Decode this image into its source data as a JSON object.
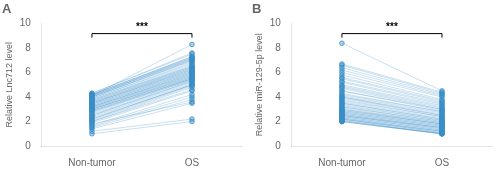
{
  "chart_data": [
    {
      "type": "line",
      "title": "A",
      "ylabel": "Relative Lnc712 level",
      "categories": [
        "Non-tumor",
        "OS"
      ],
      "color": "#3A8EC8",
      "marker": "circle",
      "ylim": [
        0,
        10
      ],
      "yticks": [
        0,
        2,
        4,
        6,
        8,
        10
      ],
      "grid": false,
      "annotations": [
        "***"
      ],
      "series": [
        {
          "values": [
            1.0,
            2.0
          ]
        },
        {
          "values": [
            1.2,
            2.2
          ]
        },
        {
          "values": [
            1.4,
            3.5
          ]
        },
        {
          "values": [
            1.5,
            3.8
          ]
        },
        {
          "values": [
            1.6,
            4.0
          ]
        },
        {
          "values": [
            1.7,
            4.2
          ]
        },
        {
          "values": [
            1.8,
            3.6
          ]
        },
        {
          "values": [
            1.9,
            4.5
          ]
        },
        {
          "values": [
            2.0,
            4.6
          ]
        },
        {
          "values": [
            2.0,
            4.8
          ]
        },
        {
          "values": [
            2.1,
            4.9
          ]
        },
        {
          "values": [
            2.2,
            5.0
          ]
        },
        {
          "values": [
            2.2,
            5.0
          ]
        },
        {
          "values": [
            2.3,
            5.0
          ]
        },
        {
          "values": [
            2.4,
            5.1
          ]
        },
        {
          "values": [
            2.5,
            5.2
          ]
        },
        {
          "values": [
            2.5,
            5.3
          ]
        },
        {
          "values": [
            2.6,
            5.3
          ]
        },
        {
          "values": [
            2.7,
            5.4
          ]
        },
        {
          "values": [
            2.8,
            5.4
          ]
        },
        {
          "values": [
            2.8,
            5.5
          ]
        },
        {
          "values": [
            2.9,
            5.5
          ]
        },
        {
          "values": [
            2.9,
            5.5
          ]
        },
        {
          "values": [
            3.0,
            5.6
          ]
        },
        {
          "values": [
            3.0,
            5.6
          ]
        },
        {
          "values": [
            3.0,
            5.7
          ]
        },
        {
          "values": [
            3.1,
            5.7
          ]
        },
        {
          "values": [
            3.1,
            5.8
          ]
        },
        {
          "values": [
            3.2,
            5.8
          ]
        },
        {
          "values": [
            3.2,
            5.9
          ]
        },
        {
          "values": [
            3.2,
            5.9
          ]
        },
        {
          "values": [
            3.3,
            6.0
          ]
        },
        {
          "values": [
            3.3,
            6.0
          ]
        },
        {
          "values": [
            3.4,
            6.1
          ]
        },
        {
          "values": [
            3.4,
            6.1
          ]
        },
        {
          "values": [
            3.5,
            6.2
          ]
        },
        {
          "values": [
            3.5,
            6.2
          ]
        },
        {
          "values": [
            3.5,
            6.3
          ]
        },
        {
          "values": [
            3.6,
            6.3
          ]
        },
        {
          "values": [
            3.6,
            6.4
          ]
        },
        {
          "values": [
            3.7,
            6.4
          ]
        },
        {
          "values": [
            3.7,
            6.5
          ]
        },
        {
          "values": [
            3.8,
            6.5
          ]
        },
        {
          "values": [
            3.8,
            6.6
          ]
        },
        {
          "values": [
            3.9,
            6.7
          ]
        },
        {
          "values": [
            3.9,
            6.8
          ]
        },
        {
          "values": [
            4.0,
            6.9
          ]
        },
        {
          "values": [
            4.0,
            7.0
          ]
        },
        {
          "values": [
            4.0,
            7.0
          ]
        },
        {
          "values": [
            4.1,
            7.1
          ]
        },
        {
          "values": [
            4.1,
            7.1
          ]
        },
        {
          "values": [
            4.1,
            7.2
          ]
        },
        {
          "values": [
            4.2,
            7.2
          ]
        },
        {
          "values": [
            4.2,
            7.3
          ]
        },
        {
          "values": [
            4.2,
            7.3
          ]
        },
        {
          "values": [
            4.3,
            7.5
          ]
        },
        {
          "values": [
            4.3,
            7.6
          ]
        },
        {
          "values": [
            4.1,
            8.3
          ]
        }
      ]
    },
    {
      "type": "line",
      "title": "B",
      "ylabel": "Relative miR-129-5p level",
      "categories": [
        "Non-tumor",
        "OS"
      ],
      "color": "#3A8EC8",
      "marker": "circle",
      "ylim": [
        0,
        10
      ],
      "yticks": [
        0,
        2,
        4,
        6,
        8,
        10
      ],
      "grid": false,
      "annotations": [
        "***"
      ],
      "series": [
        {
          "values": [
            8.4,
            4.5
          ]
        },
        {
          "values": [
            6.7,
            4.4
          ]
        },
        {
          "values": [
            6.6,
            4.3
          ]
        },
        {
          "values": [
            6.4,
            4.2
          ]
        },
        {
          "values": [
            6.2,
            4.1
          ]
        },
        {
          "values": [
            6.0,
            4.0
          ]
        },
        {
          "values": [
            5.8,
            3.8
          ]
        },
        {
          "values": [
            5.6,
            3.7
          ]
        },
        {
          "values": [
            5.5,
            3.6
          ]
        },
        {
          "values": [
            5.3,
            3.5
          ]
        },
        {
          "values": [
            5.2,
            3.4
          ]
        },
        {
          "values": [
            5.0,
            3.3
          ]
        },
        {
          "values": [
            4.9,
            3.2
          ]
        },
        {
          "values": [
            4.8,
            3.1
          ]
        },
        {
          "values": [
            4.7,
            3.0
          ]
        },
        {
          "values": [
            4.5,
            3.0
          ]
        },
        {
          "values": [
            4.5,
            2.9
          ]
        },
        {
          "values": [
            4.3,
            2.8
          ]
        },
        {
          "values": [
            4.2,
            2.8
          ]
        },
        {
          "values": [
            4.1,
            2.7
          ]
        },
        {
          "values": [
            4.0,
            2.6
          ]
        },
        {
          "values": [
            4.0,
            2.5
          ]
        },
        {
          "values": [
            3.9,
            2.5
          ]
        },
        {
          "values": [
            3.8,
            2.4
          ]
        },
        {
          "values": [
            3.7,
            2.4
          ]
        },
        {
          "values": [
            3.6,
            2.3
          ]
        },
        {
          "values": [
            3.5,
            2.2
          ]
        },
        {
          "values": [
            3.5,
            2.2
          ]
        },
        {
          "values": [
            3.4,
            2.1
          ]
        },
        {
          "values": [
            3.3,
            2.1
          ]
        },
        {
          "values": [
            3.2,
            2.0
          ]
        },
        {
          "values": [
            3.2,
            2.0
          ]
        },
        {
          "values": [
            3.1,
            1.9
          ]
        },
        {
          "values": [
            3.0,
            1.9
          ]
        },
        {
          "values": [
            3.0,
            1.8
          ]
        },
        {
          "values": [
            2.9,
            1.8
          ]
        },
        {
          "values": [
            2.9,
            1.8
          ]
        },
        {
          "values": [
            2.8,
            1.7
          ]
        },
        {
          "values": [
            2.8,
            1.7
          ]
        },
        {
          "values": [
            2.7,
            1.6
          ]
        },
        {
          "values": [
            2.7,
            1.6
          ]
        },
        {
          "values": [
            2.6,
            1.5
          ]
        },
        {
          "values": [
            2.6,
            1.5
          ]
        },
        {
          "values": [
            2.5,
            1.5
          ]
        },
        {
          "values": [
            2.5,
            1.4
          ]
        },
        {
          "values": [
            2.5,
            1.4
          ]
        },
        {
          "values": [
            2.4,
            1.3
          ]
        },
        {
          "values": [
            2.4,
            1.3
          ]
        },
        {
          "values": [
            2.3,
            1.2
          ]
        },
        {
          "values": [
            2.3,
            1.2
          ]
        },
        {
          "values": [
            2.2,
            1.2
          ]
        },
        {
          "values": [
            2.2,
            1.1
          ]
        },
        {
          "values": [
            2.2,
            1.1
          ]
        },
        {
          "values": [
            2.1,
            1.0
          ]
        },
        {
          "values": [
            2.1,
            1.0
          ]
        },
        {
          "values": [
            2.0,
            1.0
          ]
        },
        {
          "values": [
            2.0,
            1.0
          ]
        },
        {
          "values": [
            2.0,
            1.0
          ]
        }
      ]
    }
  ]
}
